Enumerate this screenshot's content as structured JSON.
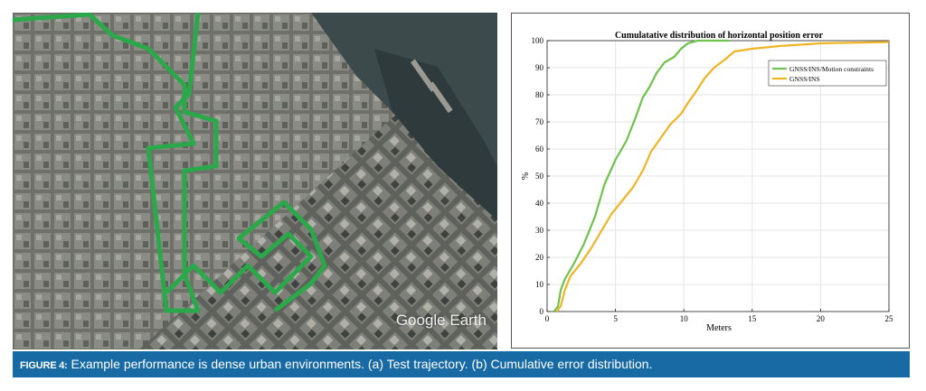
{
  "map": {
    "watermark": "Google Earth",
    "route_color": "#2aa84a"
  },
  "chart_data": {
    "type": "line",
    "title": "Cumulatative distribution of horizontal position error",
    "xlabel": "Meters",
    "ylabel": "%",
    "xlim": [
      0,
      25
    ],
    "ylim": [
      0,
      100
    ],
    "xticks": [
      0,
      5,
      10,
      15,
      20,
      25
    ],
    "yticks": [
      0,
      10,
      20,
      30,
      40,
      50,
      60,
      70,
      80,
      90,
      100
    ],
    "grid": true,
    "legend_position": "top-right",
    "series": [
      {
        "name": "GNSS/INS/Motion constraints",
        "color": "#6cc24a",
        "points": [
          [
            0.5,
            0
          ],
          [
            0.8,
            2
          ],
          [
            1.0,
            8
          ],
          [
            1.3,
            12
          ],
          [
            2.0,
            18
          ],
          [
            2.7,
            25
          ],
          [
            3.5,
            35
          ],
          [
            4.2,
            47
          ],
          [
            5.0,
            56
          ],
          [
            5.8,
            63
          ],
          [
            6.5,
            72
          ],
          [
            7.0,
            79
          ],
          [
            7.5,
            83
          ],
          [
            8.0,
            88
          ],
          [
            8.6,
            92
          ],
          [
            9.3,
            94
          ],
          [
            9.8,
            97
          ],
          [
            10.3,
            99
          ],
          [
            11.0,
            100
          ],
          [
            13.3,
            100
          ]
        ]
      },
      {
        "name": "GNSS/INS",
        "color": "#f0b323",
        "points": [
          [
            0.7,
            0
          ],
          [
            1.0,
            2
          ],
          [
            1.3,
            8
          ],
          [
            1.7,
            13
          ],
          [
            2.5,
            18
          ],
          [
            3.3,
            24
          ],
          [
            4.0,
            30
          ],
          [
            4.7,
            36
          ],
          [
            5.5,
            41
          ],
          [
            6.3,
            46
          ],
          [
            7.0,
            52
          ],
          [
            7.6,
            59
          ],
          [
            8.3,
            64
          ],
          [
            9.0,
            69
          ],
          [
            9.8,
            73
          ],
          [
            10.3,
            77
          ],
          [
            11.0,
            82
          ],
          [
            11.5,
            86
          ],
          [
            12.2,
            90
          ],
          [
            13.0,
            93
          ],
          [
            13.7,
            96
          ],
          [
            15.0,
            97
          ],
          [
            17.0,
            98
          ],
          [
            20.0,
            99
          ],
          [
            25.0,
            99.5
          ]
        ]
      }
    ]
  },
  "caption": {
    "label": "FIGURE 4:",
    "text": " Example performance is dense urban environments. (a) Test trajectory. (b) Cumulative error distribution."
  }
}
